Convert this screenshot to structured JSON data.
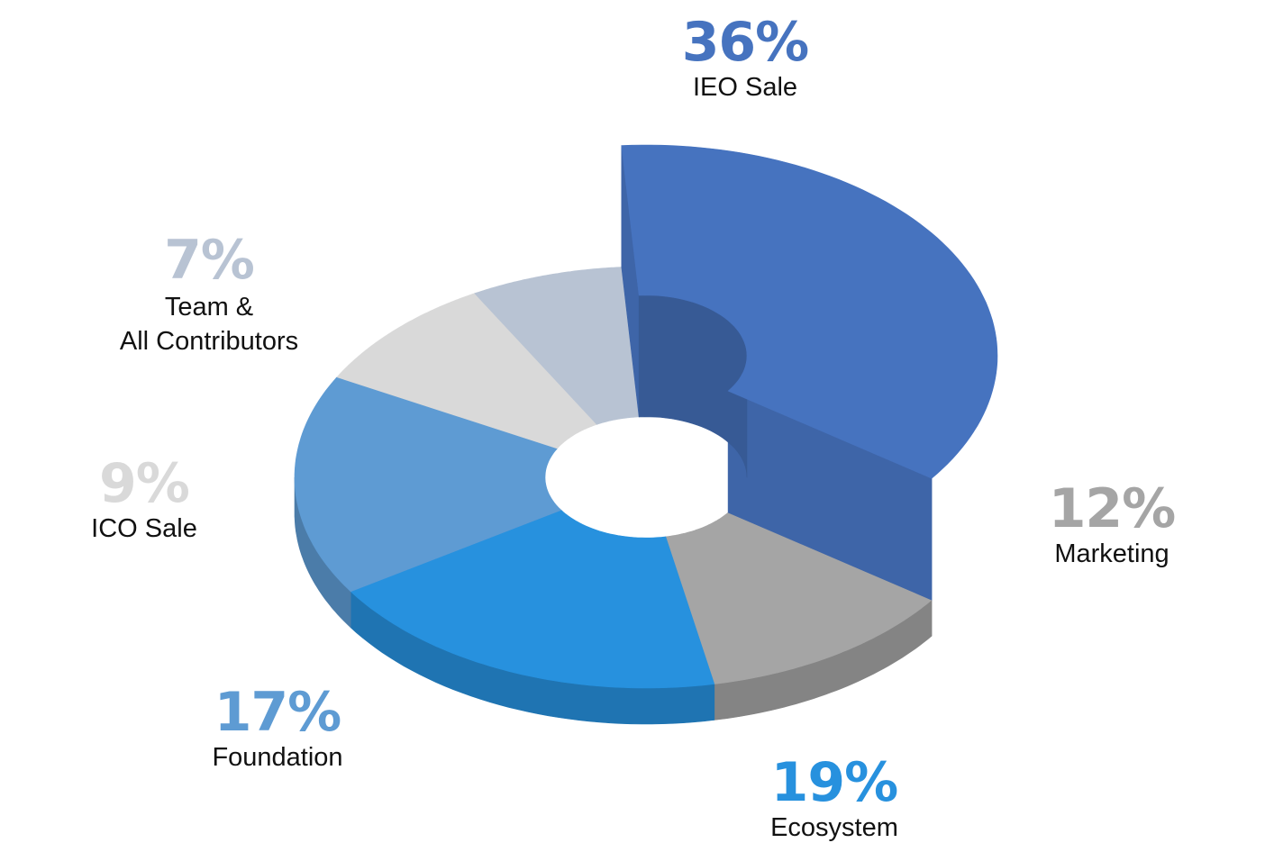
{
  "chart_data": {
    "type": "pie",
    "style": "3d-donut",
    "slices": [
      {
        "label": "IEO Sale",
        "value": 36,
        "value_label": "36%",
        "color": "#4673BF"
      },
      {
        "label": "Marketing",
        "value": 12,
        "value_label": "12%",
        "color": "#A5A5A5"
      },
      {
        "label": "Ecosystem",
        "value": 19,
        "value_label": "19%",
        "color": "#2791DE"
      },
      {
        "label": "Foundation",
        "value": 17,
        "value_label": "17%",
        "color": "#5E9BD3"
      },
      {
        "label": "ICO Sale",
        "value": 9,
        "value_label": "9%",
        "color": "#D9D9D9"
      },
      {
        "label": "Team & All Contributors",
        "label_lines": [
          "Team &",
          "All Contributors"
        ],
        "value": 7,
        "value_label": "7%",
        "color": "#B8C3D3"
      }
    ]
  }
}
